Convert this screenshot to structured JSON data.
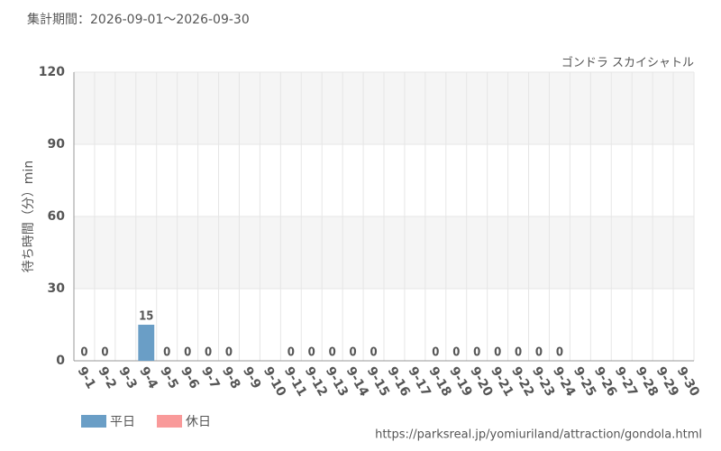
{
  "chart_data": {
    "type": "bar",
    "title": "ゴンドラ スカイシャトル",
    "subtitle": "集計期間：2026-09-01～2026-09-30",
    "y_label": "待ち時間（分）min",
    "source": "https://parksreal.jp/yomiuriland/attraction/gondola.html",
    "categories": [
      "9-1",
      "9-2",
      "9-3",
      "9-4",
      "9-5",
      "9-6",
      "9-7",
      "9-8",
      "9-9",
      "9-10",
      "9-11",
      "9-12",
      "9-13",
      "9-14",
      "9-15",
      "9-16",
      "9-17",
      "9-18",
      "9-19",
      "9-20",
      "9-21",
      "9-22",
      "9-23",
      "9-24",
      "9-25",
      "9-26",
      "9-27",
      "9-28",
      "9-29",
      "9-30"
    ],
    "category_label_colors": [
      "#555",
      "#555",
      "#555",
      "#555",
      "#f08080",
      "#f08080",
      "#555",
      "#555",
      "#555",
      "#555",
      "#555",
      "#f08080",
      "#f08080",
      "#555",
      "#555",
      "#555",
      "#555",
      "#555",
      "#f08080",
      "#f08080",
      "#f08080",
      "#f08080",
      "#f08080",
      "#555",
      "#555",
      "#f08080",
      "#f08080",
      "#555",
      "#555",
      "#555"
    ],
    "series": [
      {
        "name": "平日",
        "color": "#6a9ec6",
        "values": [
          0,
          0,
          null,
          15,
          null,
          null,
          0,
          0,
          null,
          null,
          0,
          null,
          null,
          0,
          0,
          null,
          null,
          0,
          null,
          null,
          null,
          null,
          null,
          0,
          null,
          null,
          null,
          null,
          null,
          null
        ]
      },
      {
        "name": "休日",
        "color": "#f99a9a",
        "values": [
          null,
          null,
          null,
          null,
          0,
          0,
          null,
          null,
          null,
          null,
          null,
          0,
          0,
          null,
          null,
          null,
          null,
          null,
          0,
          0,
          0,
          0,
          0,
          null,
          null,
          null,
          null,
          null,
          null,
          null
        ]
      }
    ],
    "ylim": [
      0,
      120
    ],
    "yticks": [
      0,
      30,
      60,
      90,
      120
    ],
    "grid": true
  }
}
